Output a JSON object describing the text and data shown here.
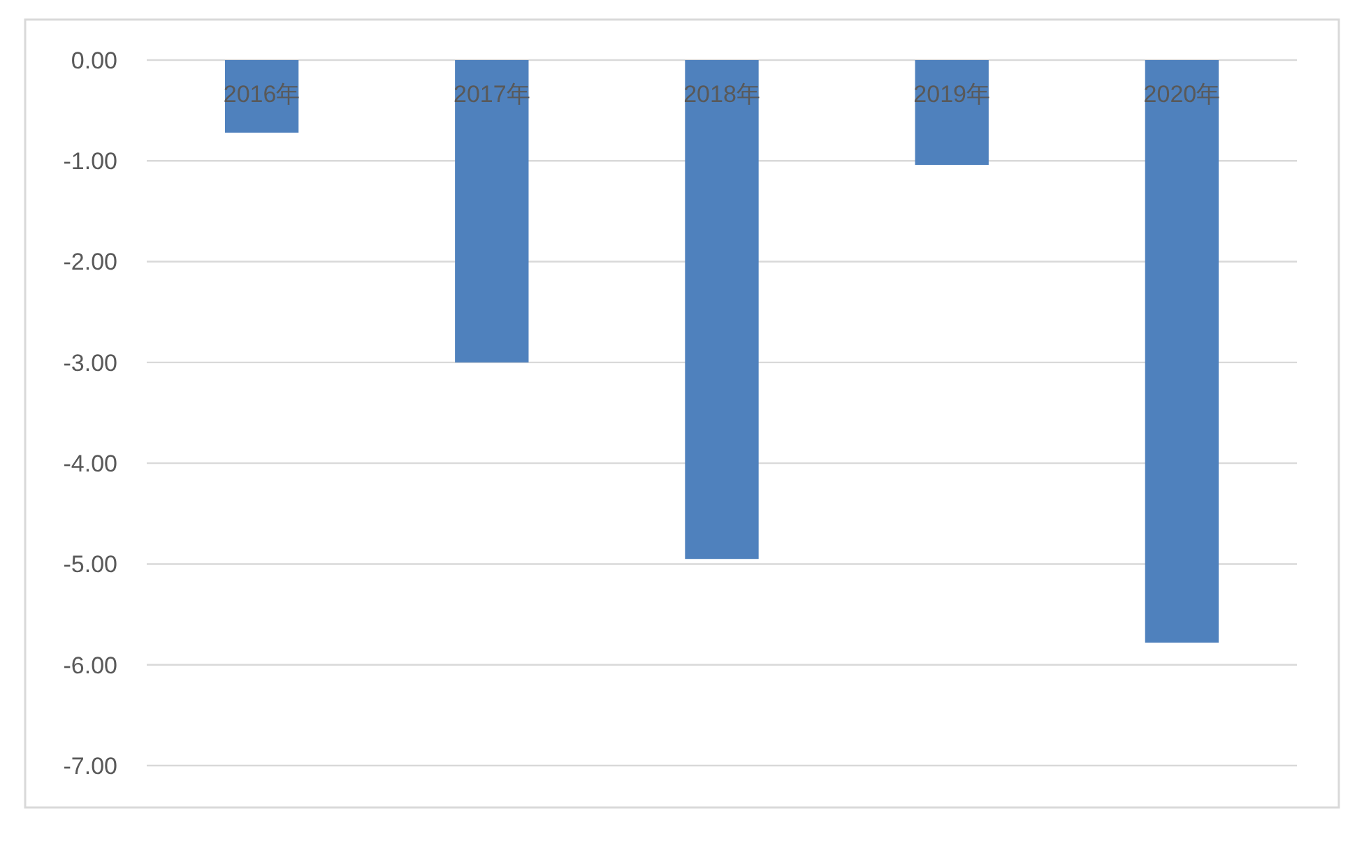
{
  "chart_data": {
    "type": "bar",
    "categories": [
      "2016年",
      "2017年",
      "2018年",
      "2019年",
      "2020年"
    ],
    "values": [
      -0.72,
      -3.0,
      -4.95,
      -1.04,
      -5.78
    ],
    "color": "#4f81bd",
    "ylim": [
      -7,
      0
    ],
    "yticks": [
      {
        "value": 0,
        "label": "0.00"
      },
      {
        "value": -1,
        "label": "-1.00"
      },
      {
        "value": -2,
        "label": "-2.00"
      },
      {
        "value": -3,
        "label": "-3.00"
      },
      {
        "value": -4,
        "label": "-4.00"
      },
      {
        "value": -5,
        "label": "-5.00"
      },
      {
        "value": -6,
        "label": "-6.00"
      },
      {
        "value": -7,
        "label": "-7.00"
      }
    ],
    "grid": "y"
  }
}
